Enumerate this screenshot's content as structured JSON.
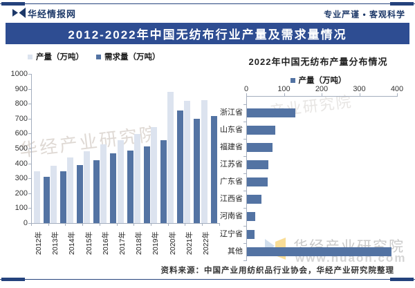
{
  "header": {
    "brand": "华经情报网",
    "slogan": "专业严谨 • 客观科学",
    "title": "2012-2022年中国无纺布行业产量及需求量情况"
  },
  "colors": {
    "navy": "#24427c",
    "title_bg": "#2e4d92",
    "light_bar": "#dce3ef",
    "dark_bar": "#5373a3",
    "axis": "#a3adbd"
  },
  "chart_data": [
    {
      "type": "bar",
      "title": "",
      "categories": [
        "2012年",
        "2013年",
        "2014年",
        "2015年",
        "2016年",
        "2017年",
        "2018年",
        "2019年",
        "2020年",
        "2021年",
        "2022年"
      ],
      "series": [
        {
          "name": "产量（万吨）",
          "color": "#dce3ef",
          "values": [
            345,
            385,
            440,
            480,
            530,
            555,
            595,
            645,
            878,
            820,
            825
          ]
        },
        {
          "name": "需求量（万吨）",
          "color": "#5373a3",
          "values": [
            310,
            345,
            390,
            422,
            468,
            487,
            515,
            556,
            755,
            700,
            717
          ]
        }
      ],
      "ylabel": "万吨",
      "ylim": [
        0,
        1000
      ],
      "y_tick_step": 100,
      "legend_position": "top-left",
      "grid": false
    },
    {
      "type": "bar-horizontal",
      "title": "2022年中国无纺布产量分布情况",
      "legend": "产量（万吨）",
      "legend_color": "#5373a3",
      "categories": [
        "浙江省",
        "山东省",
        "福建省",
        "江苏省",
        "广东省",
        "江西省",
        "河南省",
        "辽宁省",
        "其他"
      ],
      "values": [
        129,
        75,
        68,
        57,
        55,
        38,
        22,
        20,
        383
      ],
      "xlim": [
        0,
        400
      ],
      "x_tick_step": 100,
      "axis_position": "top",
      "grid": false
    }
  ],
  "watermarks": {
    "diagonal_left": "华经产业研究院",
    "diagonal_right": "产业研究院",
    "bottom_text": "华经产业研究院",
    "bottom_url": "www.huaon.com"
  },
  "footer": {
    "source": "资料来源：中国产业用纺织品行业协会，华经产业研究院整理"
  }
}
